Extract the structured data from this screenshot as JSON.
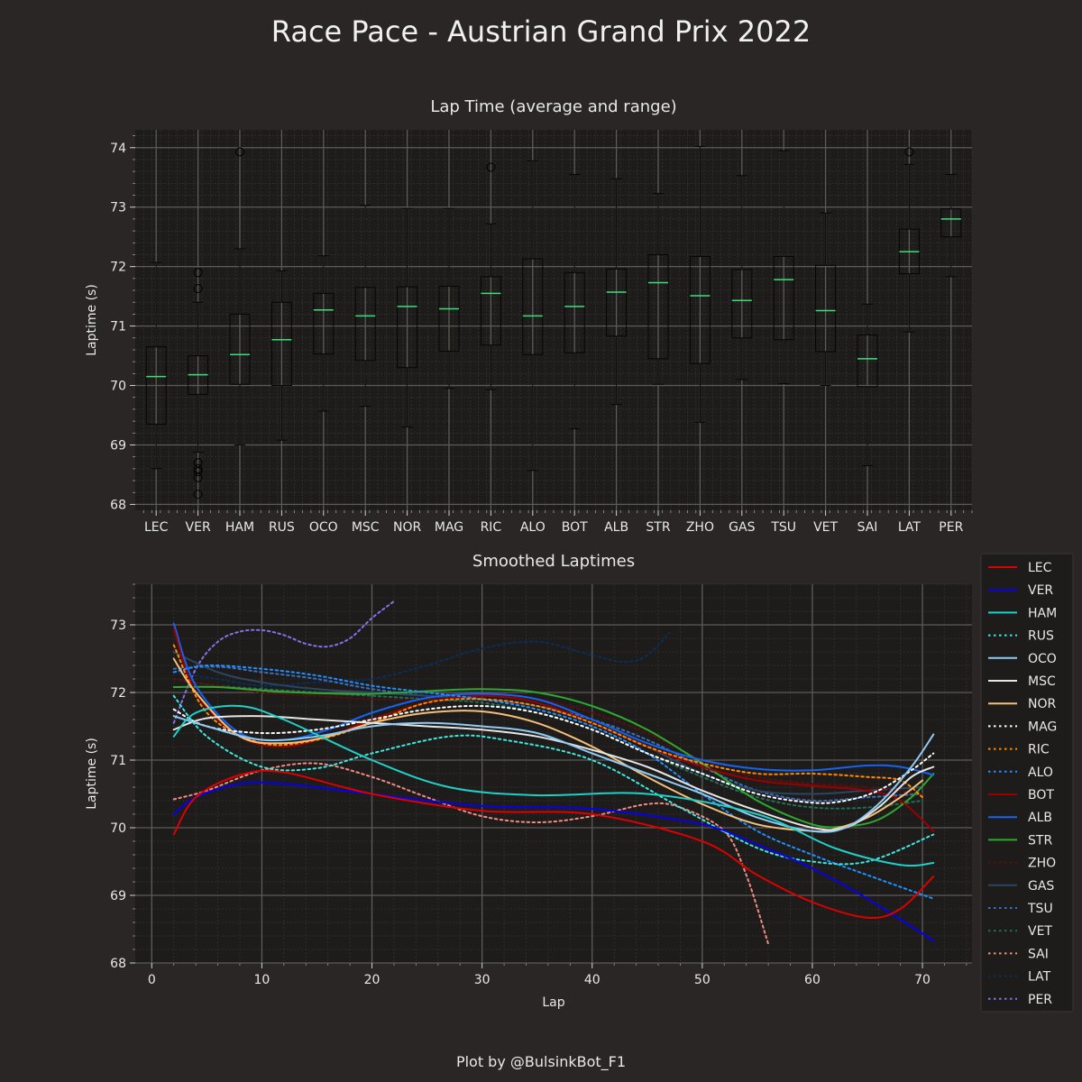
{
  "figure": {
    "title": "Race Pace - Austrian Grand Prix 2022",
    "credit": "Plot by @BulsinkBot_F1"
  },
  "chart_data": [
    {
      "type": "box",
      "title": "Lap Time (average and range)",
      "xlabel": "",
      "ylabel": "Laptime (s)",
      "ylim": [
        67.9,
        74.3
      ],
      "yticks": [
        68,
        69,
        70,
        71,
        72,
        73,
        74
      ],
      "grid": true,
      "median_color": "#39e07a",
      "categories": [
        "LEC",
        "VER",
        "HAM",
        "RUS",
        "OCO",
        "MSC",
        "NOR",
        "MAG",
        "RIC",
        "ALO",
        "BOT",
        "ALB",
        "STR",
        "ZHO",
        "GAS",
        "TSU",
        "VET",
        "SAI",
        "LAT",
        "PER"
      ],
      "boxes": [
        {
          "min": 68.6,
          "q1": 69.35,
          "median": 70.15,
          "q3": 70.65,
          "max": 72.07,
          "outliers": []
        },
        {
          "min": 68.88,
          "q1": 69.85,
          "median": 70.18,
          "q3": 70.5,
          "max": 71.4,
          "outliers": [
            71.9,
            71.63,
            68.7,
            68.6,
            68.55,
            68.45,
            68.17
          ]
        },
        {
          "min": 69.0,
          "q1": 70.02,
          "median": 70.52,
          "q3": 71.2,
          "max": 72.3,
          "outliers": [
            73.93
          ]
        },
        {
          "min": 69.08,
          "q1": 70.0,
          "median": 70.77,
          "q3": 71.4,
          "max": 71.93,
          "outliers": []
        },
        {
          "min": 69.57,
          "q1": 70.53,
          "median": 71.27,
          "q3": 71.55,
          "max": 72.18,
          "outliers": []
        },
        {
          "min": 69.65,
          "q1": 70.42,
          "median": 71.17,
          "q3": 71.65,
          "max": 73.03,
          "outliers": []
        },
        {
          "min": 69.3,
          "q1": 70.3,
          "median": 71.33,
          "q3": 71.66,
          "max": 72.98,
          "outliers": []
        },
        {
          "min": 69.95,
          "q1": 70.58,
          "median": 71.29,
          "q3": 71.67,
          "max": 72.98,
          "outliers": []
        },
        {
          "min": 69.93,
          "q1": 70.68,
          "median": 71.55,
          "q3": 71.83,
          "max": 72.72,
          "outliers": [
            73.67
          ]
        },
        {
          "min": 68.57,
          "q1": 70.52,
          "median": 71.17,
          "q3": 72.13,
          "max": 73.78,
          "outliers": []
        },
        {
          "min": 69.27,
          "q1": 70.55,
          "median": 71.33,
          "q3": 71.9,
          "max": 73.55,
          "outliers": []
        },
        {
          "min": 69.68,
          "q1": 70.83,
          "median": 71.57,
          "q3": 71.96,
          "max": 73.48,
          "outliers": []
        },
        {
          "min": 70.02,
          "q1": 70.45,
          "median": 71.73,
          "q3": 72.2,
          "max": 73.23,
          "outliers": []
        },
        {
          "min": 69.38,
          "q1": 70.37,
          "median": 71.51,
          "q3": 72.17,
          "max": 74.02,
          "outliers": []
        },
        {
          "min": 70.1,
          "q1": 70.8,
          "median": 71.43,
          "q3": 71.95,
          "max": 73.53,
          "outliers": []
        },
        {
          "min": 70.03,
          "q1": 70.77,
          "median": 71.78,
          "q3": 72.17,
          "max": 73.95,
          "outliers": []
        },
        {
          "min": 70.0,
          "q1": 70.57,
          "median": 71.26,
          "q3": 72.02,
          "max": 72.9,
          "outliers": []
        },
        {
          "min": 68.65,
          "q1": 69.98,
          "median": 70.45,
          "q3": 70.85,
          "max": 71.37,
          "outliers": []
        },
        {
          "min": 70.9,
          "q1": 71.88,
          "median": 72.25,
          "q3": 72.63,
          "max": 73.72,
          "outliers": [
            73.93
          ]
        },
        {
          "min": 71.83,
          "q1": 72.5,
          "median": 72.8,
          "q3": 72.97,
          "max": 73.55,
          "outliers": []
        }
      ]
    },
    {
      "type": "line",
      "title": "Smoothed Laptimes",
      "xlabel": "Lap",
      "ylabel": "Laptime (s)",
      "xlim": [
        -1.5,
        74.5
      ],
      "ylim": [
        68.0,
        73.6
      ],
      "xticks": [
        0,
        10,
        20,
        30,
        40,
        50,
        60,
        70
      ],
      "yticks": [
        68,
        69,
        70,
        71,
        72,
        73
      ],
      "grid": true,
      "legend": "right",
      "series": [
        {
          "name": "LEC",
          "color": "#dc0000",
          "dash": "solid",
          "x": [
            2,
            4,
            8,
            12,
            20,
            30,
            40,
            50,
            55,
            60,
            65,
            68,
            71
          ],
          "y": [
            69.9,
            70.45,
            70.78,
            70.82,
            70.5,
            70.25,
            70.2,
            69.8,
            69.3,
            68.9,
            68.67,
            68.8,
            69.28
          ]
        },
        {
          "name": "VER",
          "color": "#0600ef",
          "dash": "solid",
          "x": [
            2,
            4,
            8,
            12,
            20,
            30,
            40,
            50,
            55,
            60,
            65,
            71
          ],
          "y": [
            70.2,
            70.45,
            70.65,
            70.65,
            70.5,
            70.32,
            70.28,
            70.05,
            69.75,
            69.4,
            68.95,
            68.33
          ]
        },
        {
          "name": "HAM",
          "color": "#20d0c8",
          "dash": "solid",
          "x": [
            2,
            4,
            8,
            12,
            20,
            27,
            35,
            45,
            55,
            62,
            68,
            71
          ],
          "y": [
            71.35,
            71.7,
            71.8,
            71.6,
            71.0,
            70.6,
            70.48,
            70.5,
            70.2,
            69.7,
            69.45,
            69.48
          ]
        },
        {
          "name": "RUS",
          "color": "#40e8e0",
          "dash": "dotted",
          "x": [
            2,
            5,
            10,
            15,
            20,
            27,
            32,
            40,
            48,
            55,
            60,
            65,
            71
          ],
          "y": [
            71.95,
            71.35,
            70.9,
            70.88,
            71.1,
            71.35,
            71.3,
            71.0,
            70.3,
            69.7,
            69.5,
            69.5,
            69.9
          ]
        },
        {
          "name": "OCO",
          "color": "#8ecbf5",
          "dash": "solid",
          "x": [
            2,
            5,
            10,
            15,
            20,
            25,
            30,
            35,
            40,
            45,
            50,
            55,
            60,
            63,
            66,
            69,
            71
          ],
          "y": [
            71.65,
            71.5,
            71.3,
            71.35,
            71.5,
            71.55,
            71.5,
            71.4,
            71.1,
            70.8,
            70.5,
            70.15,
            69.95,
            70.0,
            70.35,
            70.9,
            71.38
          ]
        },
        {
          "name": "MSC",
          "color": "#e6e6e6",
          "dash": "solid",
          "x": [
            2,
            5,
            10,
            15,
            20,
            25,
            30,
            35,
            40,
            45,
            50,
            55,
            60,
            63,
            66,
            69,
            71
          ],
          "y": [
            71.45,
            71.62,
            71.65,
            71.6,
            71.55,
            71.5,
            71.45,
            71.35,
            71.15,
            70.9,
            70.55,
            70.25,
            70.0,
            70.0,
            70.3,
            70.75,
            70.9
          ]
        },
        {
          "name": "NOR",
          "color": "#f5c07a",
          "dash": "solid",
          "x": [
            2,
            4,
            8,
            12,
            16,
            20,
            25,
            30,
            35,
            40,
            45,
            50,
            55,
            60,
            62,
            65,
            68,
            70
          ],
          "y": [
            72.5,
            72.0,
            71.35,
            71.25,
            71.35,
            71.55,
            71.7,
            71.72,
            71.55,
            71.2,
            70.75,
            70.35,
            70.05,
            69.95,
            69.98,
            70.15,
            70.45,
            70.7
          ]
        },
        {
          "name": "MAG",
          "color": "#ffffff",
          "dash": "dotted",
          "x": [
            2,
            5,
            10,
            15,
            20,
            25,
            30,
            35,
            40,
            45,
            50,
            55,
            60,
            63,
            66,
            69,
            71
          ],
          "y": [
            71.75,
            71.5,
            71.4,
            71.45,
            71.6,
            71.75,
            71.8,
            71.7,
            71.45,
            71.1,
            70.8,
            70.5,
            70.37,
            70.4,
            70.55,
            70.85,
            71.1
          ]
        },
        {
          "name": "RIC",
          "color": "#ff8a00",
          "dash": "dotted",
          "x": [
            2,
            5,
            10,
            15,
            20,
            25,
            30,
            35,
            40,
            45,
            50,
            55,
            60,
            65,
            68,
            70
          ],
          "y": [
            72.7,
            71.7,
            71.25,
            71.3,
            71.55,
            71.85,
            71.9,
            71.8,
            71.55,
            71.2,
            70.95,
            70.8,
            70.8,
            70.75,
            70.7,
            70.45
          ]
        },
        {
          "name": "ALO",
          "color": "#1e90ff",
          "dash": "dotted",
          "x": [
            2,
            5,
            10,
            15,
            20,
            25,
            30,
            35,
            40,
            45,
            50,
            55,
            60,
            65,
            71
          ],
          "y": [
            72.3,
            72.4,
            72.35,
            72.25,
            72.1,
            72.0,
            71.9,
            71.75,
            71.5,
            71.1,
            70.5,
            69.95,
            69.6,
            69.3,
            68.95
          ]
        },
        {
          "name": "BOT",
          "color": "#9b0000",
          "dash": "solid",
          "x": [
            2,
            4,
            8,
            12,
            16,
            20,
            25,
            30,
            35,
            40,
            45,
            50,
            55,
            60,
            65,
            68,
            71
          ],
          "y": [
            72.95,
            72.0,
            71.35,
            71.2,
            71.35,
            71.6,
            71.85,
            71.95,
            71.85,
            71.55,
            71.2,
            70.9,
            70.7,
            70.62,
            70.55,
            70.4,
            69.95
          ]
        },
        {
          "name": "ALB",
          "color": "#1464f4",
          "dash": "solid",
          "x": [
            2,
            4,
            8,
            12,
            16,
            20,
            25,
            30,
            35,
            40,
            45,
            50,
            55,
            60,
            65,
            68,
            71
          ],
          "y": [
            73.02,
            72.1,
            71.4,
            71.3,
            71.45,
            71.7,
            71.92,
            71.98,
            71.9,
            71.6,
            71.25,
            71.0,
            70.87,
            70.85,
            70.92,
            70.9,
            70.78
          ]
        },
        {
          "name": "STR",
          "color": "#2ea82e",
          "dash": "solid",
          "x": [
            2,
            6,
            10,
            15,
            20,
            25,
            30,
            35,
            40,
            45,
            50,
            55,
            60,
            63,
            66,
            69,
            71
          ],
          "y": [
            72.08,
            72.08,
            72.03,
            71.99,
            71.98,
            72.02,
            72.05,
            72.0,
            71.8,
            71.45,
            70.95,
            70.4,
            70.05,
            70.02,
            70.12,
            70.45,
            70.8
          ]
        },
        {
          "name": "ZHO",
          "color": "#5a0e0e",
          "dash": "dotted",
          "x": [
            2,
            6,
            10,
            15,
            20,
            25,
            30,
            35,
            40,
            45,
            50,
            55,
            60,
            65,
            70
          ],
          "y": [
            72.2,
            72.1,
            72.0,
            71.95,
            71.9,
            71.9,
            71.95,
            71.9,
            71.7,
            71.4,
            71.0,
            70.75,
            70.65,
            70.6,
            70.5
          ]
        },
        {
          "name": "GAS",
          "color": "#2b4562",
          "dash": "solid",
          "x": [
            2,
            6,
            10,
            15,
            20,
            25,
            30,
            35,
            40,
            45,
            50,
            55,
            60,
            65,
            70
          ],
          "y": [
            72.6,
            72.3,
            72.15,
            72.05,
            72.0,
            71.95,
            71.9,
            71.8,
            71.55,
            71.2,
            70.8,
            70.55,
            70.5,
            70.55,
            70.6
          ]
        },
        {
          "name": "TSU",
          "color": "#3d6fbd",
          "dash": "dotted",
          "x": [
            2,
            6,
            10,
            15,
            20,
            25,
            30,
            35,
            40,
            45,
            50,
            55,
            60,
            65,
            70
          ],
          "y": [
            72.35,
            72.38,
            72.3,
            72.2,
            72.05,
            71.95,
            71.9,
            71.8,
            71.6,
            71.3,
            70.9,
            70.55,
            70.4,
            70.45,
            70.5
          ]
        },
        {
          "name": "VET",
          "color": "#1f6e5a",
          "dash": "dotted",
          "x": [
            2,
            6,
            10,
            15,
            20,
            25,
            30,
            35,
            40,
            45,
            50,
            55,
            60,
            65,
            70
          ],
          "y": [
            72.2,
            72.1,
            72.05,
            72.0,
            71.95,
            71.9,
            71.85,
            71.7,
            71.45,
            71.1,
            70.75,
            70.45,
            70.3,
            70.3,
            70.4
          ]
        },
        {
          "name": "SAI",
          "color": "#f28b82",
          "dash": "dotted",
          "x": [
            2,
            5,
            10,
            15,
            20,
            25,
            30,
            35,
            40,
            45,
            48,
            52,
            54,
            56
          ],
          "y": [
            70.42,
            70.55,
            70.85,
            70.95,
            70.75,
            70.45,
            70.17,
            70.08,
            70.17,
            70.35,
            70.3,
            69.95,
            69.3,
            68.28
          ]
        },
        {
          "name": "LAT",
          "color": "#0a2d5a",
          "dash": "dotted",
          "x": [
            2,
            6,
            10,
            15,
            20,
            25,
            30,
            35,
            40,
            43,
            45,
            47
          ],
          "y": [
            72.3,
            72.2,
            72.1,
            72.15,
            72.2,
            72.4,
            72.65,
            72.75,
            72.55,
            72.45,
            72.55,
            72.88
          ]
        },
        {
          "name": "PER",
          "color": "#8a6fe8",
          "dash": "dotted",
          "x": [
            2,
            4,
            6,
            8,
            10,
            12,
            14,
            16,
            18,
            20,
            22
          ],
          "y": [
            71.55,
            72.35,
            72.75,
            72.9,
            72.92,
            72.85,
            72.72,
            72.68,
            72.8,
            73.1,
            73.35
          ]
        }
      ]
    }
  ]
}
